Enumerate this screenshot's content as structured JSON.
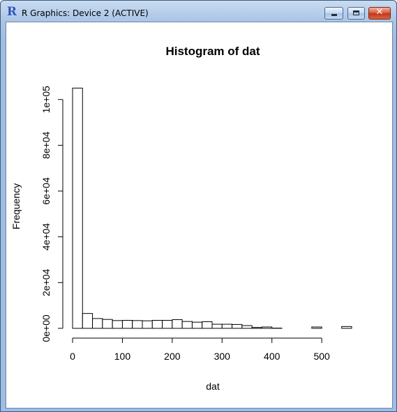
{
  "window": {
    "title": "R Graphics: Device 2 (ACTIVE)",
    "app_icon_letter": "R",
    "buttons": [
      "minimize",
      "maximize",
      "close"
    ]
  },
  "chart_data": {
    "type": "bar",
    "title": "Histogram of dat",
    "xlabel": "dat",
    "ylabel": "Frequency",
    "bin_edges": [
      0,
      20,
      40,
      60,
      80,
      100,
      120,
      140,
      160,
      180,
      200,
      220,
      240,
      260,
      280,
      300,
      320,
      340,
      360,
      380,
      400,
      420,
      440,
      460,
      480,
      500,
      520,
      540,
      560
    ],
    "values": [
      105000,
      6500,
      4300,
      3900,
      3400,
      3500,
      3400,
      3300,
      3500,
      3500,
      3800,
      3000,
      2700,
      2900,
      1800,
      1800,
      1700,
      1200,
      400,
      600,
      100,
      0,
      0,
      0,
      600,
      0,
      0,
      800
    ],
    "xlim": [
      0,
      560
    ],
    "ylim": [
      0,
      100000
    ],
    "x_ticks": [
      0,
      100,
      200,
      300,
      400,
      500
    ],
    "x_tick_labels": [
      "0",
      "100",
      "200",
      "300",
      "400",
      "500"
    ],
    "y_ticks": [
      0,
      20000,
      40000,
      60000,
      80000,
      100000
    ],
    "y_tick_labels": [
      "0e+00",
      "2e+04",
      "4e+04",
      "6e+04",
      "8e+04",
      "1e+05"
    ],
    "grid": false,
    "bar_fill": "#ffffff",
    "bar_stroke": "#000000"
  }
}
